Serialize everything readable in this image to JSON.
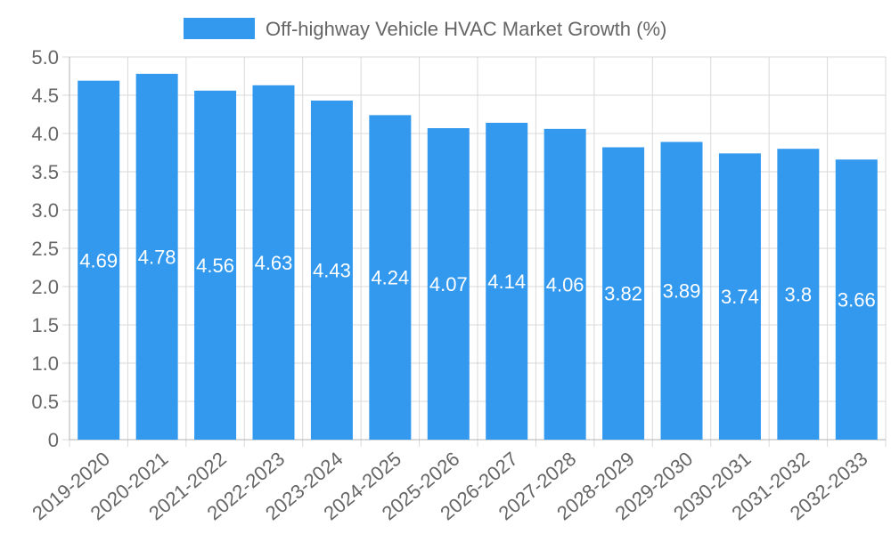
{
  "chart_data": {
    "type": "bar",
    "categories": [
      "2019-2020",
      "2020-2021",
      "2021-2022",
      "2022-2023",
      "2023-2024",
      "2024-2025",
      "2025-2026",
      "2026-2027",
      "2027-2028",
      "2028-2029",
      "2029-2030",
      "2030-2031",
      "2031-2032",
      "2032-2033"
    ],
    "series": [
      {
        "name": "Off-highway Vehicle HVAC Market Growth (%)",
        "values": [
          4.69,
          4.78,
          4.56,
          4.63,
          4.43,
          4.24,
          4.07,
          4.14,
          4.06,
          3.82,
          3.89,
          3.74,
          3.8,
          3.66
        ],
        "data_labels": [
          "4.69",
          "4.78",
          "4.56",
          "4.63",
          "4.43",
          "4.24",
          "4.07",
          "4.14",
          "4.06",
          "3.82",
          "3.89",
          "3.74",
          "3.8",
          "3.66"
        ]
      }
    ],
    "title": "",
    "xlabel": "",
    "ylabel": "",
    "ylim": [
      0,
      5.0
    ],
    "y_ticks": [
      "0",
      "0.5",
      "1.0",
      "1.5",
      "2.0",
      "2.5",
      "3.0",
      "3.5",
      "4.0",
      "4.5",
      "5.0"
    ],
    "grid": true,
    "legend_position": "top-center",
    "colors": {
      "bar": "#3399ee",
      "grid": "#d9d9d9",
      "text": "#666666",
      "data_label": "#ffffff"
    }
  }
}
